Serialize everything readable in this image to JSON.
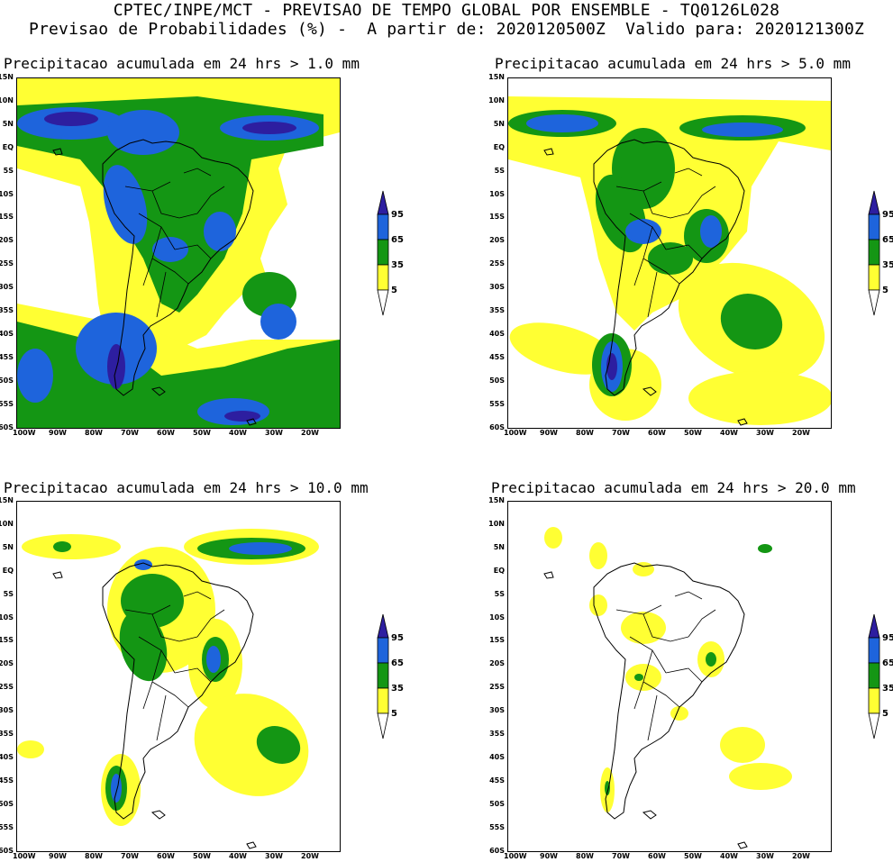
{
  "header": {
    "line1": "CPTEC/INPE/MCT - PREVISAO DE TEMPO GLOBAL POR ENSEMBLE - TQ0126L028",
    "line2": "Previsao de Probabilidades (%) -  A partir de: 2020120500Z  Valido para: 2020121300Z"
  },
  "lat_labels": [
    "15N",
    "10N",
    "5N",
    "EQ",
    "5S",
    "10S",
    "15S",
    "20S",
    "25S",
    "30S",
    "35S",
    "40S",
    "45S",
    "50S",
    "55S",
    "60S"
  ],
  "lon_labels": [
    "100W",
    "90W",
    "80W",
    "70W",
    "60W",
    "50W",
    "40W",
    "30W",
    "20W"
  ],
  "legend": {
    "levels": [
      "95",
      "65",
      "35",
      "5"
    ],
    "colors": {
      "c5": "#ffff33",
      "c35": "#149614",
      "c65": "#1e64dc",
      "c95": "#2d1ea0"
    }
  },
  "panels": [
    {
      "id": "p1",
      "title": "Precipitacao acumulada em 24 hrs > 1.0 mm"
    },
    {
      "id": "p2",
      "title": "Precipitacao acumulada em 24 hrs > 5.0 mm"
    },
    {
      "id": "p3",
      "title": "Precipitacao acumulada em 24 hrs > 10.0 mm"
    },
    {
      "id": "p4",
      "title": "Precipitacao acumulada em 24 hrs > 20.0 mm"
    }
  ]
}
